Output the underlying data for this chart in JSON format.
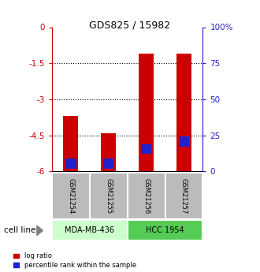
{
  "title": "GDS825 / 15982",
  "samples": [
    "GSM21254",
    "GSM21255",
    "GSM21256",
    "GSM21257"
  ],
  "log_ratios": [
    -3.7,
    -4.4,
    -1.1,
    -1.1
  ],
  "percentile_ranks": [
    2,
    2,
    12,
    17
  ],
  "cell_lines": [
    {
      "label": "MDA-MB-436",
      "samples": [
        0,
        1
      ],
      "color": "#ccffcc"
    },
    {
      "label": "HCC 1954",
      "samples": [
        2,
        3
      ],
      "color": "#55cc55"
    }
  ],
  "ylim_left": [
    -6,
    0
  ],
  "ylim_right": [
    0,
    100
  ],
  "left_ticks": [
    0,
    -1.5,
    -3,
    -4.5,
    -6
  ],
  "right_ticks": [
    0,
    25,
    50,
    75,
    100
  ],
  "bar_color_red": "#cc0000",
  "bar_color_blue": "#2222cc",
  "left_axis_color": "#cc0000",
  "right_axis_color": "#2222cc",
  "sample_box_color": "#bbbbbb",
  "bar_width": 0.4,
  "legend_red_label": "log ratio",
  "legend_blue_label": "percentile rank within the sample",
  "cell_line_label": "cell line"
}
